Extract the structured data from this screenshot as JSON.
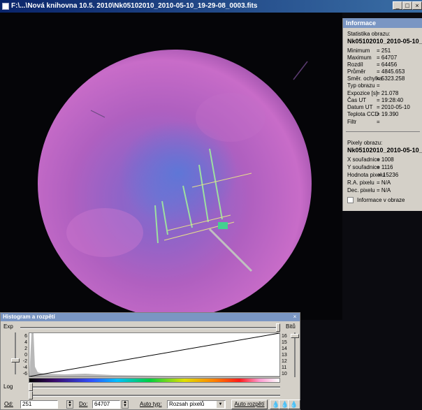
{
  "window": {
    "title": "F:\\...\\Nová knihovna 10.5. 2010\\Nk05102010_2010-05-10_19-29-08_0003.fits",
    "min_glyph": "_",
    "max_glyph": "□",
    "close_glyph": "×"
  },
  "info": {
    "header": "Informace",
    "stats_title": "Statistika obrazu:",
    "file_name": "Nk05102010_2010-05-10_",
    "stats": [
      {
        "key": "Minimum",
        "value": "= 251"
      },
      {
        "key": "Maximum",
        "value": "= 64707"
      },
      {
        "key": "Rozdíl",
        "value": "= 64456"
      },
      {
        "key": "Průměr",
        "value": "= 4845.653"
      },
      {
        "key": "Směr. ochylka",
        "value": "= 5323.258"
      },
      {
        "key": "Typ obrazu",
        "value": "="
      },
      {
        "key": "Expozice [s]",
        "value": "= 21.078"
      },
      {
        "key": "Čas UT",
        "value": "= 19:28:40"
      },
      {
        "key": "Datum UT",
        "value": "= 2010-05-10"
      },
      {
        "key": "Teplota CCD",
        "value": "= 19.390"
      },
      {
        "key": "Filtr",
        "value": "="
      }
    ],
    "pixels_title": "Pixely obrazu:",
    "pixels_file": "Nk05102010_2010-05-10_",
    "pixels": [
      {
        "key": "X souřadnice",
        "value": "= 1008"
      },
      {
        "key": "Y souřadnice",
        "value": "= 1116"
      },
      {
        "key": "Hodnota pixelu",
        "value": "= 15236"
      },
      {
        "key": "R.A. pixelu",
        "value": "= N/A"
      },
      {
        "key": "Dec. pixelu",
        "value": "= N/A"
      }
    ],
    "checkbox_label": "Informace v obraze"
  },
  "histogram": {
    "title": "Histogram a rozpětí",
    "close_glyph": "×",
    "exp_label": "Exp",
    "bitu_label": "Bitů",
    "log_label": "Log",
    "left_ticks": [
      "6",
      "4",
      "2",
      "0",
      "-2",
      "-4",
      "-6"
    ],
    "right_ticks": [
      "16",
      "15",
      "14",
      "13",
      "12",
      "11",
      "10"
    ],
    "od_label": "Od:",
    "od_value": "251",
    "do_label": "Do:",
    "do_value": "64707",
    "auto_typ_label": "Auto typ:",
    "auto_typ_value": "Rozsah pixelů",
    "auto_button": "Auto rozpětí",
    "color_accent": "#7a96c3"
  }
}
